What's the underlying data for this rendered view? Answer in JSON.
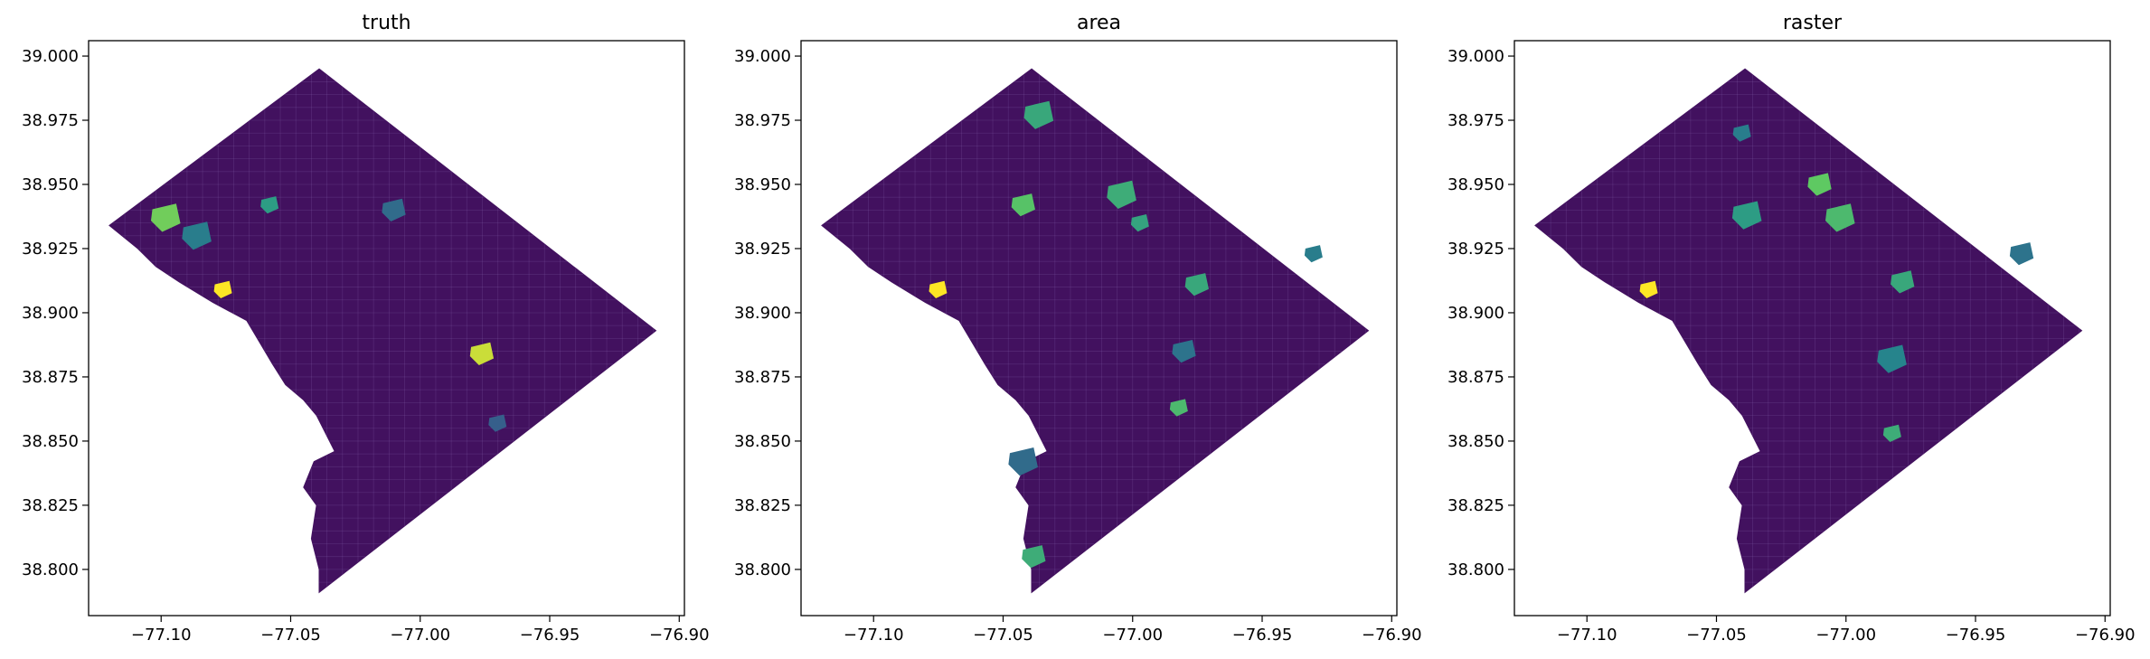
{
  "chart_data": [
    {
      "type": "choropleth",
      "title": "truth",
      "xlabel": "",
      "ylabel": "",
      "x_ticks": [
        "−77.10",
        "−77.05",
        "−77.00",
        "−76.95",
        "−76.90"
      ],
      "y_ticks": [
        "38.800",
        "38.825",
        "38.850",
        "38.875",
        "38.900",
        "38.925",
        "38.950",
        "38.975",
        "39.000"
      ],
      "xlim": [
        -77.128,
        -76.898
      ],
      "ylim": [
        38.782,
        39.006
      ],
      "colormap": "viridis",
      "highlights": [
        {
          "lon": -77.076,
          "lat": 38.909,
          "level": 1.0
        },
        {
          "lon": -76.976,
          "lat": 38.884,
          "level": 0.92
        },
        {
          "lon": -77.098,
          "lat": 38.937,
          "level": 0.78
        },
        {
          "lon": -77.058,
          "lat": 38.942,
          "level": 0.55
        },
        {
          "lon": -77.01,
          "lat": 38.94,
          "level": 0.35
        },
        {
          "lon": -77.086,
          "lat": 38.93,
          "level": 0.42
        },
        {
          "lon": -76.97,
          "lat": 38.857,
          "level": 0.3
        }
      ]
    },
    {
      "type": "choropleth",
      "title": "area",
      "xlabel": "",
      "ylabel": "",
      "x_ticks": [
        "−77.10",
        "−77.05",
        "−77.00",
        "−76.95",
        "−76.90"
      ],
      "y_ticks": [
        "38.800",
        "38.825",
        "38.850",
        "38.875",
        "38.900",
        "38.925",
        "38.950",
        "38.975",
        "39.000"
      ],
      "xlim": [
        -77.128,
        -76.898
      ],
      "ylim": [
        38.782,
        39.006
      ],
      "colormap": "viridis",
      "highlights": [
        {
          "lon": -77.075,
          "lat": 38.909,
          "level": 1.0
        },
        {
          "lon": -77.038,
          "lat": 38.805,
          "level": 0.62
        },
        {
          "lon": -77.036,
          "lat": 38.977,
          "level": 0.6
        },
        {
          "lon": -76.982,
          "lat": 38.863,
          "level": 0.68
        },
        {
          "lon": -77.042,
          "lat": 38.942,
          "level": 0.72
        },
        {
          "lon": -77.004,
          "lat": 38.946,
          "level": 0.62
        },
        {
          "lon": -76.997,
          "lat": 38.935,
          "level": 0.58
        },
        {
          "lon": -76.975,
          "lat": 38.911,
          "level": 0.6
        },
        {
          "lon": -77.042,
          "lat": 38.842,
          "level": 0.35
        },
        {
          "lon": -76.93,
          "lat": 38.923,
          "level": 0.42
        },
        {
          "lon": -76.98,
          "lat": 38.885,
          "level": 0.38
        }
      ]
    },
    {
      "type": "choropleth",
      "title": "raster",
      "xlabel": "",
      "ylabel": "",
      "x_ticks": [
        "−77.10",
        "−77.05",
        "−77.00",
        "−76.95",
        "−76.90"
      ],
      "y_ticks": [
        "38.800",
        "38.825",
        "38.850",
        "38.875",
        "38.900",
        "38.925",
        "38.950",
        "38.975",
        "39.000"
      ],
      "xlim": [
        -77.128,
        -76.898
      ],
      "ylim": [
        38.782,
        39.006
      ],
      "colormap": "viridis",
      "highlights": [
        {
          "lon": -77.076,
          "lat": 38.909,
          "level": 1.0
        },
        {
          "lon": -77.01,
          "lat": 38.95,
          "level": 0.75
        },
        {
          "lon": -77.002,
          "lat": 38.937,
          "level": 0.68
        },
        {
          "lon": -76.982,
          "lat": 38.853,
          "level": 0.62
        },
        {
          "lon": -76.978,
          "lat": 38.912,
          "level": 0.6
        },
        {
          "lon": -77.038,
          "lat": 38.938,
          "level": 0.55
        },
        {
          "lon": -77.04,
          "lat": 38.97,
          "level": 0.42
        },
        {
          "lon": -76.932,
          "lat": 38.923,
          "level": 0.38
        },
        {
          "lon": -76.982,
          "lat": 38.882,
          "level": 0.45
        }
      ]
    }
  ]
}
